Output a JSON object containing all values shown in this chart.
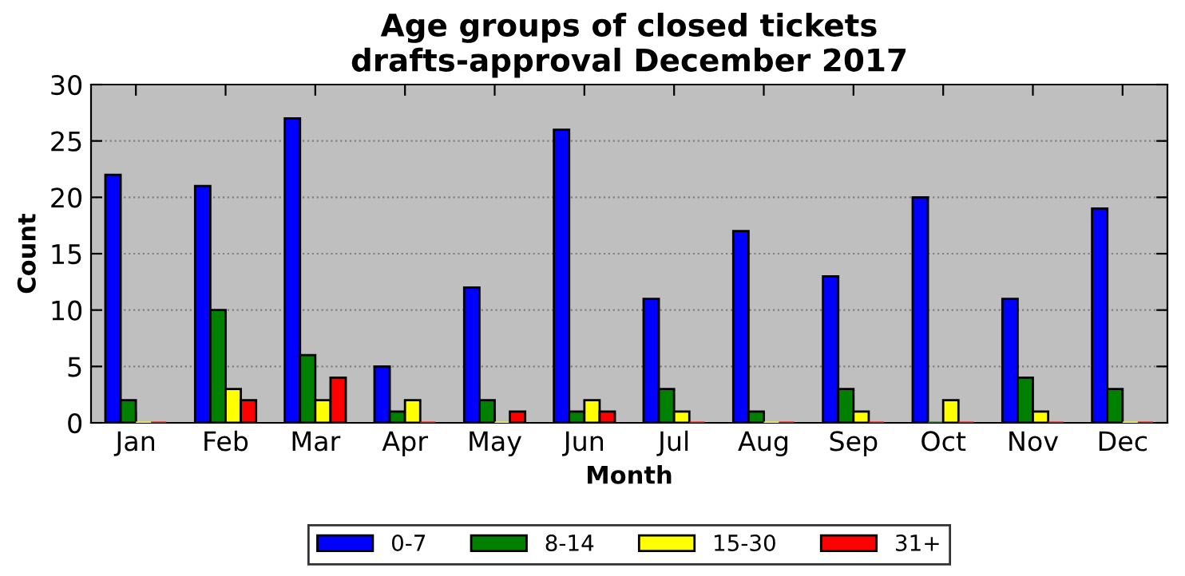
{
  "chart_data": {
    "type": "bar",
    "title": "Age groups of closed tickets\ndrafts-approval December 2017",
    "xlabel": "Month",
    "ylabel": "Count",
    "categories": [
      "Jan",
      "Feb",
      "Mar",
      "Apr",
      "May",
      "Jun",
      "Jul",
      "Aug",
      "Sep",
      "Oct",
      "Nov",
      "Dec"
    ],
    "series": [
      {
        "name": "0-7",
        "color": "#0000ff",
        "values": [
          22,
          21,
          27,
          5,
          12,
          26,
          11,
          17,
          13,
          20,
          11,
          19
        ]
      },
      {
        "name": "8-14",
        "color": "#008000",
        "values": [
          2,
          10,
          6,
          1,
          2,
          1,
          3,
          1,
          3,
          0,
          4,
          3
        ]
      },
      {
        "name": "15-30",
        "color": "#ffff00",
        "values": [
          0,
          3,
          2,
          2,
          0,
          2,
          1,
          0,
          1,
          2,
          1,
          0
        ]
      },
      {
        "name": "31+",
        "color": "#ff0000",
        "values": [
          0,
          2,
          4,
          0,
          1,
          1,
          0,
          0,
          0,
          0,
          0,
          0
        ]
      }
    ],
    "ylim": [
      0,
      30
    ],
    "yticks": [
      0,
      5,
      10,
      15,
      20,
      25,
      30
    ],
    "grid": "y",
    "legend": "bottom"
  }
}
